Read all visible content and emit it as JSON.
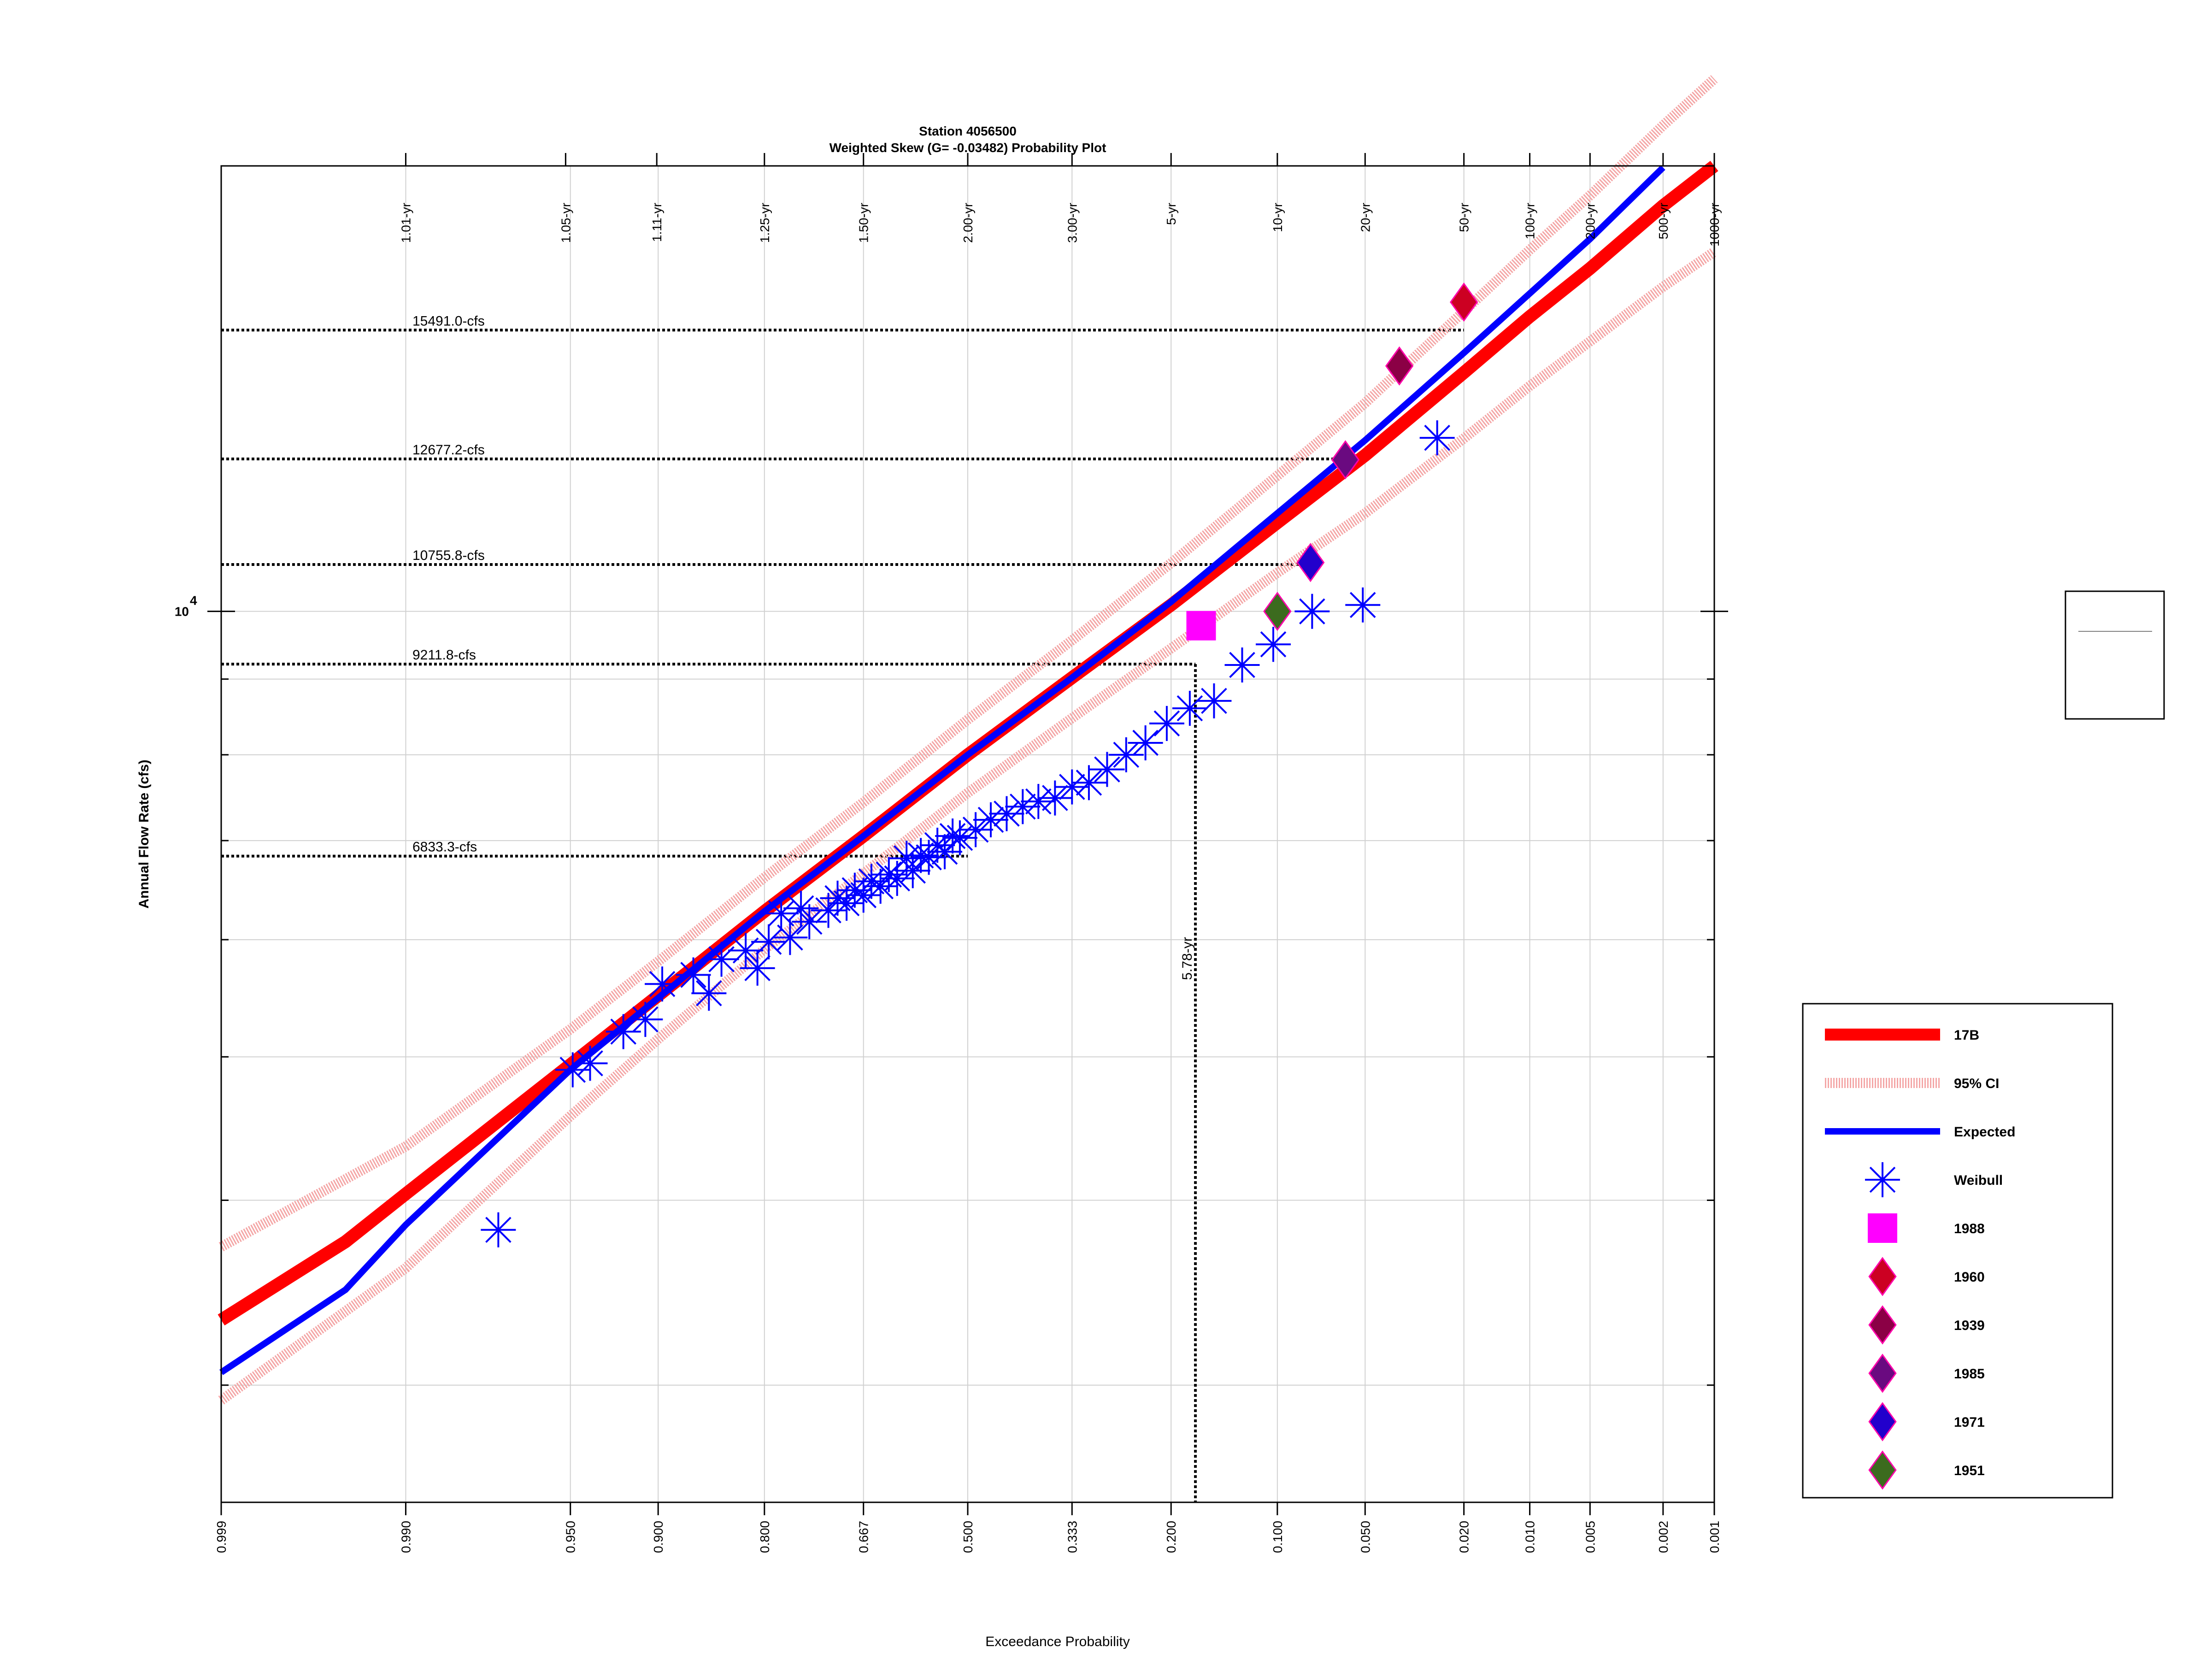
{
  "chart_data": {
    "type": "scatter",
    "title": "Station 4056500",
    "subtitle": "Weighted Skew (G= -0.03482) Probability Plot",
    "xlabel": "Exceedance Probability",
    "ylabel": "Annual Flow Rate (cfs)",
    "y_scale": "log",
    "x_scale": "normal-probability",
    "xlim": [
      0.999,
      0.001
    ],
    "ylim": [
      2500,
      20000
    ],
    "y_tick_label": {
      "base": "10",
      "exp": "4"
    },
    "x_tick_labels": [
      "0.999",
      "0.990",
      "0.950",
      "0.900",
      "0.800",
      "0.667",
      "0.500",
      "0.333",
      "0.200",
      "0.100",
      "0.050",
      "0.020",
      "0.010",
      "0.005",
      "0.002",
      "0.001"
    ],
    "x_ticks": [
      0.999,
      0.99,
      0.95,
      0.9,
      0.8,
      0.667,
      0.5,
      0.333,
      0.2,
      0.1,
      0.05,
      0.02,
      0.01,
      0.005,
      0.002,
      0.001
    ],
    "y_minor_ticks": [
      3000,
      4000,
      5000,
      6000,
      7000,
      8000,
      9000,
      20000
    ],
    "top_return_period_labels": [
      "1.01-yr",
      "1.05-yr",
      "1.11-yr",
      "1.25-yr",
      "1.50-yr",
      "2.00-yr",
      "3.00-yr",
      "5-yr",
      "10-yr",
      "20-yr",
      "50-yr",
      "100-yr",
      "200-yr",
      "500-yr",
      "1000-yr"
    ],
    "top_return_period_probs": [
      0.99,
      0.952,
      0.901,
      0.8,
      0.667,
      0.5,
      0.333,
      0.2,
      0.1,
      0.05,
      0.02,
      0.01,
      0.005,
      0.002,
      0.001
    ],
    "grid": true,
    "legend_position": "right",
    "series": [
      {
        "name": "17B",
        "kind": "line",
        "color": "#ff0000",
        "p": [
          0.999,
          0.995,
          0.99,
          0.95,
          0.9,
          0.8,
          0.667,
          0.5,
          0.333,
          0.2,
          0.1,
          0.05,
          0.02,
          0.01,
          0.005,
          0.002,
          0.001
        ],
        "y": [
          3320,
          3750,
          4040,
          4940,
          5500,
          6270,
          7050,
          8000,
          9020,
          10100,
          11480,
          12750,
          14500,
          15820,
          17050,
          18800,
          20000
        ]
      },
      {
        "name": "95% CI",
        "kind": "band",
        "color": "#f4a6a6",
        "p": [
          0.999,
          0.99,
          0.95,
          0.9,
          0.8,
          0.667,
          0.5,
          0.333,
          0.2,
          0.1,
          0.05,
          0.02,
          0.01,
          0.005,
          0.002,
          0.001
        ],
        "upper": [
          3720,
          4350,
          5220,
          5800,
          6610,
          7430,
          8450,
          9560,
          10780,
          12350,
          13830,
          15950,
          17550,
          19100,
          21300,
          22900
        ],
        "lower": [
          2930,
          3600,
          4560,
          5140,
          5910,
          6650,
          7540,
          8470,
          9440,
          10620,
          11650,
          13090,
          14200,
          15220,
          16570,
          17500
        ]
      },
      {
        "name": "Expected",
        "kind": "line",
        "color": "#0000ff",
        "p": [
          0.999,
          0.995,
          0.99,
          0.95,
          0.9,
          0.8,
          0.667,
          0.5,
          0.333,
          0.2,
          0.1,
          0.05,
          0.02,
          0.01,
          0.005,
          0.002
        ],
        "y": [
          3060,
          3480,
          3850,
          4900,
          5480,
          6270,
          7050,
          8000,
          9020,
          10150,
          11650,
          13050,
          14950,
          16400,
          17850,
          19950
        ]
      },
      {
        "name": "Weibull",
        "kind": "scatter",
        "color": "#0000ff",
        "p": [
          0.974,
          0.949,
          0.923,
          0.897,
          0.872,
          0.846,
          0.821,
          0.795,
          0.769,
          0.744,
          0.718,
          0.692,
          0.667,
          0.641,
          0.615,
          0.59,
          0.564,
          0.538,
          0.513,
          0.487,
          0.462,
          0.436,
          0.41,
          0.385,
          0.359,
          0.333,
          0.308,
          0.282,
          0.256,
          0.231,
          0.205,
          0.179,
          0.154,
          0.128,
          0.103,
          0.077,
          0.051,
          0.026,
          0.941,
          0.909,
          0.858,
          0.808,
          0.78,
          0.755,
          0.705,
          0.68,
          0.655,
          0.628,
          0.6,
          0.577,
          0.55,
          0.525
        ],
        "y": [
          3820,
          4900,
          5200,
          5600,
          5680,
          5820,
          5900,
          5980,
          6020,
          6170,
          6280,
          6350,
          6430,
          6520,
          6600,
          6680,
          6820,
          6880,
          7030,
          7120,
          7230,
          7300,
          7380,
          7440,
          7480,
          7610,
          7660,
          7820,
          8000,
          8150,
          8400,
          8600,
          8700,
          9200,
          9500,
          10000,
          10100,
          13100,
          4950,
          5300,
          5520,
          5740,
          6250,
          6300,
          6400,
          6480,
          6570,
          6640,
          6810,
          6840,
          6950,
          7050
        ]
      },
      {
        "name": "1988",
        "kind": "marker",
        "shape": "square",
        "color": "#ff00ff",
        "p": [
          0.167
        ],
        "y": [
          9780
        ]
      },
      {
        "name": "1960",
        "kind": "marker",
        "shape": "diamond",
        "color": "#cc0022",
        "p": [
          0.02
        ],
        "y": [
          16180
        ]
      },
      {
        "name": "1939",
        "kind": "marker",
        "shape": "diamond",
        "color": "#8b0045",
        "p": [
          0.037
        ],
        "y": [
          14650
        ]
      },
      {
        "name": "1985",
        "kind": "marker",
        "shape": "diamond",
        "color": "#6a0a80",
        "p": [
          0.059
        ],
        "y": [
          12660
        ]
      },
      {
        "name": "1971",
        "kind": "marker",
        "shape": "diamond",
        "color": "#2200cc",
        "p": [
          0.078
        ],
        "y": [
          10790
        ]
      },
      {
        "name": "1951",
        "kind": "marker",
        "shape": "diamond",
        "color": "#3c6b1e",
        "p": [
          0.1
        ],
        "y": [
          10000
        ]
      }
    ],
    "reference_lines": [
      {
        "label": "15491.0-cfs",
        "y": 15491.0,
        "p_end": 0.02
      },
      {
        "label": "12677.2-cfs",
        "y": 12677.2,
        "p_end": 0.059
      },
      {
        "label": "10755.8-cfs",
        "y": 10755.8,
        "p_end": 0.078
      },
      {
        "label": "9211.8-cfs",
        "y": 9211.8,
        "p_end": 0.173
      },
      {
        "label": "6833.3-cfs",
        "y": 6833.3,
        "p_end": 0.5
      }
    ],
    "vertical_reference": {
      "label": "5.78-yr",
      "p": 0.173
    }
  }
}
